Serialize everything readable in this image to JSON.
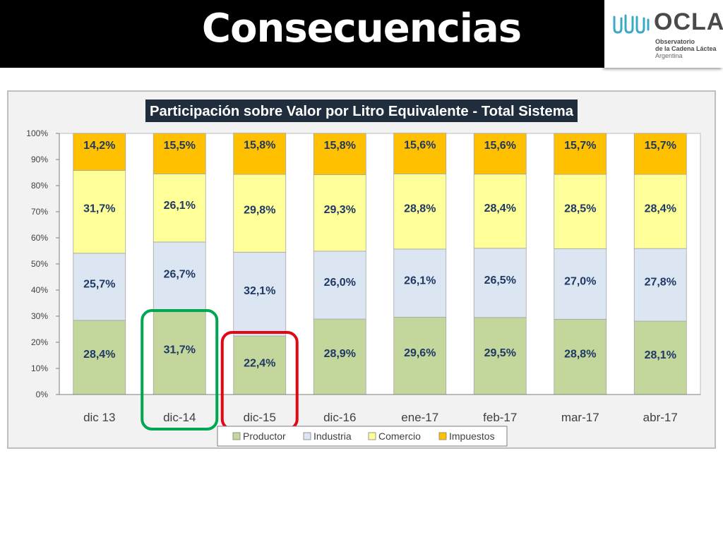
{
  "slide": {
    "title": "Consecuencias"
  },
  "logo": {
    "name": "OCLA",
    "line1": "Observatorio",
    "line2": "de la Cadena Láctea",
    "line3": "Argentina"
  },
  "colors": {
    "productor": "#c3d69b",
    "industria": "#dce6f2",
    "comercio": "#ffff99",
    "impuestos": "#ffc000",
    "highlight_green": "#00a651",
    "highlight_red": "#e30613",
    "label_text": "#1f3864"
  },
  "chart_data": {
    "type": "bar",
    "stacked": true,
    "title": "Participación sobre Valor por Litro Equivalente - Total Sistema",
    "categories": [
      "dic 13",
      "dic-14",
      "dic-15",
      "dic-16",
      "ene-17",
      "feb-17",
      "mar-17",
      "abr-17"
    ],
    "series": [
      {
        "name": "Productor",
        "values": [
          28.4,
          31.7,
          22.4,
          28.9,
          29.6,
          29.5,
          28.8,
          28.1
        ],
        "labels": [
          "28,4%",
          "31,7%",
          "22,4%",
          "28,9%",
          "29,6%",
          "29,5%",
          "28,8%",
          "28,1%"
        ]
      },
      {
        "name": "Industria",
        "values": [
          25.7,
          26.7,
          32.1,
          26.0,
          26.1,
          26.5,
          27.0,
          27.8
        ],
        "labels": [
          "25,7%",
          "26,7%",
          "32,1%",
          "26,0%",
          "26,1%",
          "26,5%",
          "27,0%",
          "27,8%"
        ]
      },
      {
        "name": "Comercio",
        "values": [
          31.7,
          26.1,
          29.8,
          29.3,
          28.8,
          28.4,
          28.5,
          28.4
        ],
        "labels": [
          "31,7%",
          "26,1%",
          "29,8%",
          "29,3%",
          "28,8%",
          "28,4%",
          "28,5%",
          "28,4%"
        ]
      },
      {
        "name": "Impuestos",
        "values": [
          14.2,
          15.5,
          15.8,
          15.8,
          15.6,
          15.6,
          15.7,
          15.7
        ],
        "labels": [
          "14,2%",
          "15,5%",
          "15,8%",
          "15,8%",
          "15,6%",
          "15,6%",
          "15,7%",
          "15,7%"
        ]
      }
    ],
    "y_ticks": [
      "0%",
      "10%",
      "20%",
      "30%",
      "40%",
      "50%",
      "60%",
      "70%",
      "80%",
      "90%",
      "100%"
    ],
    "ylim": [
      0,
      100
    ],
    "grid": false,
    "legend": "bottom",
    "highlights": [
      {
        "category": "dic-14",
        "color": "green"
      },
      {
        "category": "dic-15",
        "color": "red"
      }
    ]
  }
}
